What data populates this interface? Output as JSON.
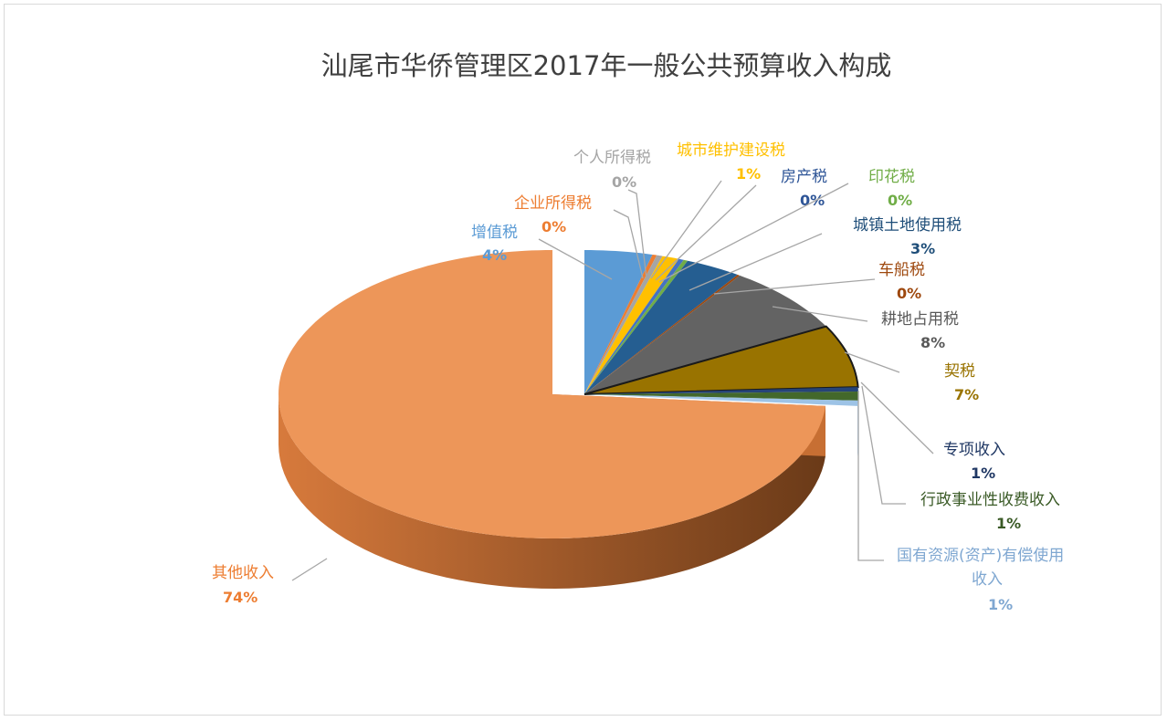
{
  "chart_data": {
    "type": "pie",
    "title": "汕尾市华侨管理区2017年一般公共预算收入构成",
    "style": "3d-exploded",
    "slices": [
      {
        "name": "增值税",
        "label_value": "4%",
        "value": 4,
        "color": "#5b9bd5",
        "label_color": "#5b9bd5"
      },
      {
        "name": "企业所得税",
        "label_value": "0%",
        "value": 0.25,
        "color": "#ed7d31",
        "label_color": "#ed7d31"
      },
      {
        "name": "个人所得税",
        "label_value": "0%",
        "value": 0.35,
        "color": "#a5a5a5",
        "label_color": "#a5a5a5"
      },
      {
        "name": "城市维护建设税",
        "label_value": "1%",
        "value": 1,
        "color": "#ffc000",
        "label_color": "#ffc000"
      },
      {
        "name": "房产税",
        "label_value": "0%",
        "value": 0.3,
        "color": "#4472c4",
        "label_color": "#2e5597"
      },
      {
        "name": "印花税",
        "label_value": "0%",
        "value": 0.25,
        "color": "#70ad47",
        "label_color": "#70ad47"
      },
      {
        "name": "城镇土地使用税",
        "label_value": "3%",
        "value": 3.3,
        "color": "#255e91",
        "label_color": "#1f4e79"
      },
      {
        "name": "车船税",
        "label_value": "0%",
        "value": 0.15,
        "color": "#9e480e",
        "label_color": "#9e480e"
      },
      {
        "name": "耕地占用税",
        "label_value": "8%",
        "value": 7.6,
        "color": "#636363",
        "label_color": "#595959"
      },
      {
        "name": "契税",
        "label_value": "7%",
        "value": 7.0,
        "color": "#997300",
        "label_color": "#997300"
      },
      {
        "name": "专项收入",
        "label_value": "1%",
        "value": 0.5,
        "color": "#264478",
        "label_color": "#203864"
      },
      {
        "name": "行政事业性收费收入",
        "label_value": "1%",
        "value": 1.0,
        "color": "#43682b",
        "label_color": "#3a5a26"
      },
      {
        "name": "国有资源(资产)有偿使用收入",
        "label_value": "1%",
        "value": 0.6,
        "color": "#9dc3e6",
        "label_color": "#7fa7d1"
      },
      {
        "name": "其他收入",
        "label_value": "74%",
        "value": 73.7,
        "color": "#ed9659",
        "label_color": "#ed7d31"
      }
    ]
  }
}
